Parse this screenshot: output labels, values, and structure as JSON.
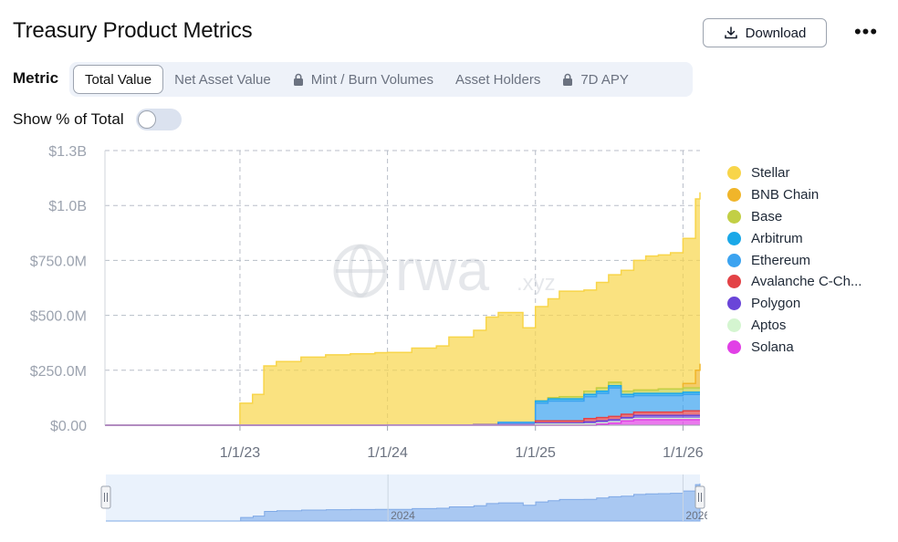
{
  "header": {
    "title": "Treasury Product Metrics",
    "download_label": "Download",
    "more_label": "•••"
  },
  "metric": {
    "label": "Metric",
    "tabs": [
      {
        "label": "Total Value",
        "active": true,
        "locked": false
      },
      {
        "label": "Net Asset Value",
        "active": false,
        "locked": false
      },
      {
        "label": "Mint / Burn Volumes",
        "active": false,
        "locked": true
      },
      {
        "label": "Asset Holders",
        "active": false,
        "locked": false
      },
      {
        "label": "7D APY",
        "active": false,
        "locked": true
      }
    ]
  },
  "toggle": {
    "label": "Show % of Total",
    "on": false
  },
  "watermark": {
    "main": "rwa",
    "suffix": ".xyz"
  },
  "chart_data": {
    "type": "area",
    "stacked": true,
    "y_ticks": [
      "$0.00",
      "$250.0M",
      "$500.0M",
      "$750.0M",
      "$1.0B",
      "$1.3B"
    ],
    "y_tick_values": [
      0,
      250,
      500,
      750,
      1000,
      1250
    ],
    "ylim": [
      0,
      1250
    ],
    "x_ticks": [
      "1/1/23",
      "1/1/24",
      "1/1/25",
      "1/1/26"
    ],
    "x_tick_values": [
      "2023-01-01",
      "2024-01-01",
      "2025-01-01",
      "2026-01-01"
    ],
    "xlim": [
      "2022-02-01",
      "2026-02-12"
    ],
    "grid": true,
    "legend_position": "right",
    "colors": {
      "Stellar": "#f8d54a",
      "BNB Chain": "#f0b52a",
      "Base": "#c2cf45",
      "Arbitrum": "#1aa8e8",
      "Ethereum": "#3ba3f0",
      "Avalanche C-Ch...": "#e34246",
      "Polygon": "#6a45d8",
      "Aptos": "#d4f5d0",
      "Solana": "#e140e6"
    },
    "x": [
      "2022-02-01",
      "2022-12-15",
      "2023-01-01",
      "2023-02-01",
      "2023-03-01",
      "2023-04-01",
      "2023-06-01",
      "2023-08-01",
      "2023-10-01",
      "2023-12-01",
      "2024-01-01",
      "2024-03-01",
      "2024-05-01",
      "2024-06-01",
      "2024-08-01",
      "2024-09-01",
      "2024-10-01",
      "2024-12-01",
      "2025-01-01",
      "2025-02-01",
      "2025-03-01",
      "2025-05-01",
      "2025-06-01",
      "2025-07-01",
      "2025-08-01",
      "2025-09-01",
      "2025-10-01",
      "2025-11-01",
      "2025-12-01",
      "2026-01-01",
      "2026-02-01",
      "2026-02-12"
    ],
    "series": [
      {
        "name": "Solana",
        "values": [
          0,
          0,
          0,
          0,
          0,
          0,
          0,
          0,
          0,
          0,
          0,
          0,
          0,
          0,
          0,
          0,
          0,
          0,
          0,
          0,
          0,
          0,
          5,
          10,
          20,
          25,
          25,
          25,
          25,
          25,
          25,
          25
        ]
      },
      {
        "name": "Aptos",
        "values": [
          0,
          0,
          0,
          0,
          0,
          0,
          0,
          0,
          0,
          0,
          0,
          0,
          0,
          0,
          0,
          0,
          0,
          0,
          5,
          5,
          5,
          5,
          5,
          5,
          5,
          5,
          5,
          5,
          5,
          5,
          5,
          5
        ]
      },
      {
        "name": "Polygon",
        "values": [
          0,
          0,
          0,
          0,
          0,
          0,
          0,
          0,
          0,
          0,
          1,
          1,
          1,
          1,
          2,
          2,
          3,
          3,
          5,
          5,
          5,
          10,
          10,
          10,
          10,
          15,
          15,
          15,
          15,
          15,
          15,
          15
        ]
      },
      {
        "name": "Avalanche C-Ch...",
        "values": [
          0,
          0,
          0,
          0,
          0,
          0,
          0,
          0,
          0,
          0,
          0,
          0,
          0,
          0,
          0,
          0,
          0,
          0,
          10,
          10,
          10,
          15,
          15,
          15,
          15,
          15,
          15,
          15,
          15,
          20,
          20,
          20
        ]
      },
      {
        "name": "Ethereum",
        "values": [
          0,
          0,
          0,
          0,
          0,
          0,
          0,
          0,
          0,
          0,
          0,
          0,
          0,
          0,
          0,
          0,
          10,
          10,
          80,
          90,
          90,
          100,
          110,
          130,
          80,
          75,
          75,
          75,
          75,
          75,
          75,
          75
        ]
      },
      {
        "name": "Arbitrum",
        "values": [
          0,
          0,
          0,
          0,
          0,
          0,
          0,
          0,
          0,
          0,
          0,
          0,
          0,
          0,
          0,
          0,
          0,
          0,
          10,
          10,
          10,
          10,
          10,
          10,
          10,
          10,
          10,
          10,
          10,
          10,
          10,
          10
        ]
      },
      {
        "name": "Base",
        "values": [
          0,
          0,
          0,
          0,
          0,
          0,
          0,
          0,
          0,
          0,
          0,
          0,
          0,
          0,
          0,
          0,
          0,
          0,
          0,
          5,
          10,
          15,
          15,
          15,
          15,
          15,
          15,
          20,
          20,
          20,
          20,
          20
        ]
      },
      {
        "name": "BNB Chain",
        "values": [
          0,
          0,
          0,
          0,
          0,
          0,
          0,
          0,
          0,
          0,
          0,
          0,
          0,
          0,
          0,
          0,
          0,
          0,
          0,
          0,
          0,
          0,
          0,
          0,
          0,
          0,
          0,
          0,
          0,
          20,
          80,
          110
        ]
      },
      {
        "name": "Stellar",
        "values": [
          1,
          1,
          100,
          140,
          270,
          290,
          310,
          320,
          325,
          330,
          330,
          350,
          360,
          400,
          430,
          490,
          500,
          430,
          430,
          450,
          480,
          460,
          480,
          490,
          550,
          590,
          610,
          610,
          620,
          660,
          780,
          780
        ]
      }
    ],
    "navigator": {
      "labels": [
        "2024",
        "2026"
      ]
    }
  }
}
